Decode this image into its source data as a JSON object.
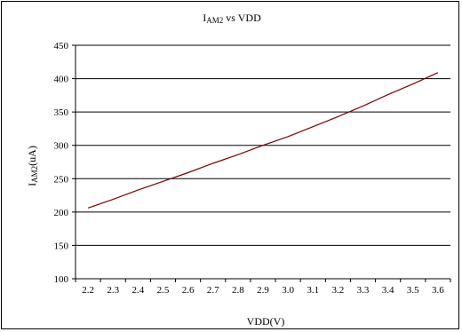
{
  "chart_data": {
    "type": "line",
    "title": {
      "main": "I",
      "sub": "AM2",
      "rest": " vs VDD"
    },
    "xlabel": "VDD(V)",
    "ylabel": {
      "main": "I",
      "sub": "AM2",
      "rest": "(uA)"
    },
    "categories": [
      "2.2",
      "2.3",
      "2.4",
      "2.5",
      "2.6",
      "2.7",
      "2.8",
      "2.9",
      "3.0",
      "3.1",
      "3.2",
      "3.3",
      "3.4",
      "3.5",
      "3.6"
    ],
    "ylim": [
      100,
      450
    ],
    "yticks": [
      "100",
      "150",
      "200",
      "250",
      "300",
      "350",
      "400",
      "450"
    ],
    "grid": "horizontal",
    "legend": "none",
    "series": [
      {
        "color": "#800000",
        "x": [
          2.2,
          2.3,
          2.4,
          2.5,
          2.6,
          2.7,
          2.8,
          2.9,
          3.0,
          3.1,
          3.2,
          3.3,
          3.4,
          3.5,
          3.6
        ],
        "values": [
          206,
          219,
          233,
          246,
          259,
          273,
          286,
          300,
          313,
          328,
          343,
          359,
          376,
          392,
          409
        ]
      }
    ]
  }
}
